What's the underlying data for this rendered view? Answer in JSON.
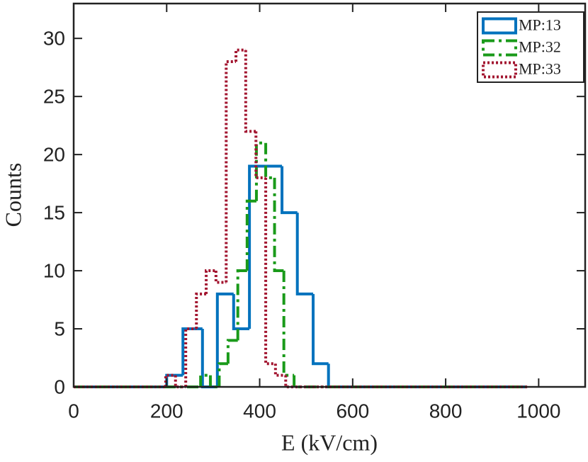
{
  "chart_data": {
    "type": "histogram",
    "xlabel": "E (kV/cm)",
    "ylabel": "Counts",
    "xlim": [
      0,
      1100
    ],
    "xticks": [
      0,
      200,
      400,
      600,
      800,
      1000
    ],
    "ylim": [
      0,
      33
    ],
    "yticks": [
      0,
      5,
      10,
      15,
      20,
      25,
      30
    ],
    "legend": "upper right",
    "series": [
      {
        "name": "MP:13",
        "color": "#0072bd",
        "linestyle": "solid",
        "bins": [
          0,
          200,
          235,
          277,
          309,
          344,
          378,
          413,
          448,
          481,
          515,
          548,
          975
        ],
        "values": [
          0,
          1,
          5,
          0,
          8,
          5,
          19,
          19,
          15,
          8,
          2,
          0
        ]
      },
      {
        "name": "MP:32",
        "color": "#1a9a1a",
        "linestyle": "dashdot",
        "bins": [
          0,
          273,
          294,
          313,
          332,
          353,
          373,
          393,
          413,
          432,
          452,
          474,
          975
        ],
        "values": [
          0,
          1,
          0,
          2,
          4,
          10,
          16,
          21,
          18,
          10,
          1,
          0
        ]
      },
      {
        "name": "MP:33",
        "color": "#a2142f",
        "linestyle": "dotted",
        "bins": [
          0,
          198,
          219,
          241,
          264,
          285,
          306,
          328,
          349,
          370,
          392,
          413,
          434,
          456,
          477,
          977
        ],
        "values": [
          0,
          1,
          0,
          5,
          8,
          10,
          9,
          28,
          29,
          22,
          18,
          2,
          1,
          0,
          0
        ]
      }
    ]
  }
}
